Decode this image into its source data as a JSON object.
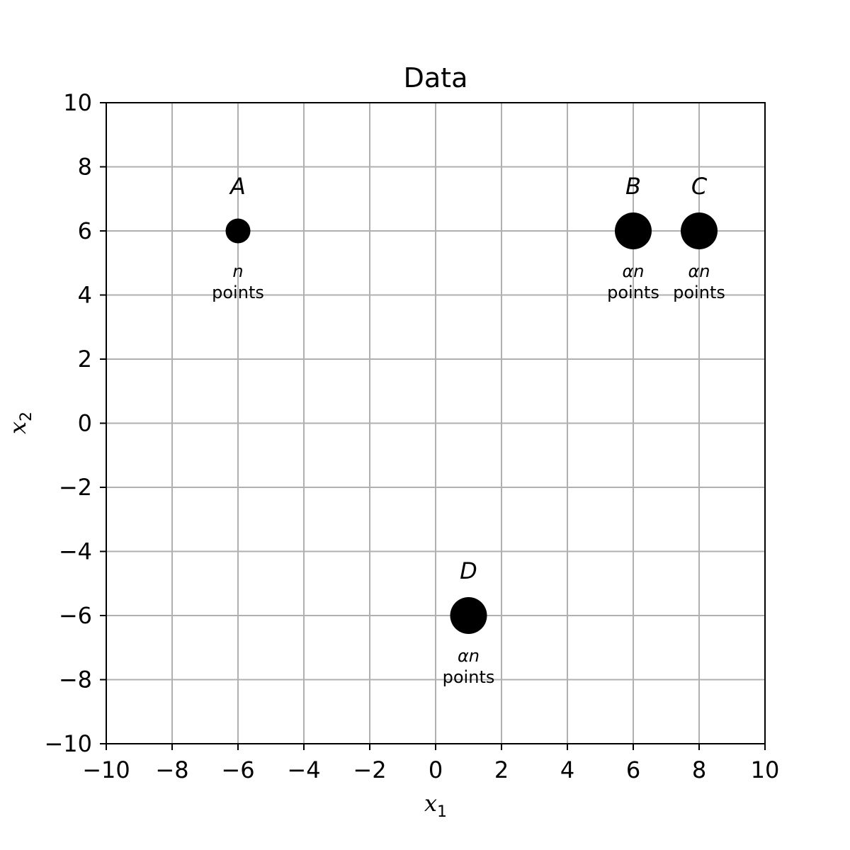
{
  "chart_data": {
    "type": "scatter",
    "title": "Data",
    "xlabel": {
      "base": "x",
      "sub": "1"
    },
    "ylabel": {
      "base": "x",
      "sub": "2"
    },
    "xlim": [
      -10,
      10
    ],
    "ylim": [
      -10,
      10
    ],
    "xticks": [
      -10,
      -8,
      -6,
      -4,
      -2,
      0,
      2,
      4,
      6,
      8,
      10
    ],
    "yticks": [
      -10,
      -8,
      -6,
      -4,
      -2,
      0,
      2,
      4,
      6,
      8,
      10
    ],
    "tick_labels": [
      "−10",
      "−8",
      "−6",
      "−4",
      "−2",
      "0",
      "2",
      "4",
      "6",
      "8",
      "10"
    ],
    "grid": true,
    "marker_color": "#000000",
    "grid_color": "#b0b0b0",
    "points": [
      {
        "label": "A",
        "x": -6,
        "y": 6,
        "count": "n",
        "unit": "points",
        "relative_size": 1
      },
      {
        "label": "B",
        "x": 6,
        "y": 6,
        "count": "αn",
        "unit": "points",
        "relative_size": 2
      },
      {
        "label": "C",
        "x": 8,
        "y": 6,
        "count": "αn",
        "unit": "points",
        "relative_size": 2
      },
      {
        "label": "D",
        "x": 1,
        "y": -6,
        "count": "αn",
        "unit": "points",
        "relative_size": 2
      }
    ]
  }
}
